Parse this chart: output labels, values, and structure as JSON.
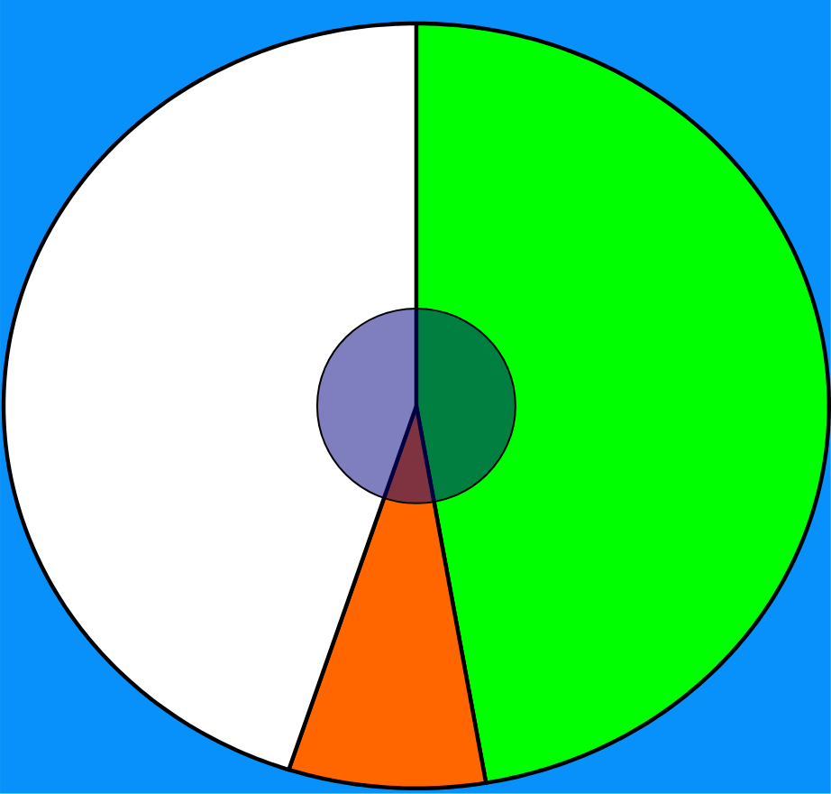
{
  "chart_data": {
    "type": "pie",
    "categories": [
      null,
      null,
      null
    ],
    "values": [
      47.3,
      7.7,
      45
    ],
    "colors": [
      "#00ff00",
      "#ff6600",
      "#ffffff"
    ]
  }
}
